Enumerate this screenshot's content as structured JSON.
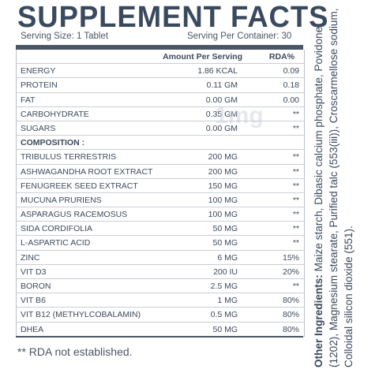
{
  "header": {
    "title": "SUPPLEMENT FACTS",
    "serving_size": "Serving Size: 1 Tablet",
    "serving_per_container": "Serving Per Container: 30"
  },
  "table": {
    "columns": [
      "",
      "Amount Per Serving",
      "RDA%"
    ],
    "rows": [
      {
        "name": "ENERGY",
        "amount": "1.86 KCAL",
        "rda": "0.09"
      },
      {
        "name": "PROTEIN",
        "amount": "0.11 GM",
        "rda": "0.18"
      },
      {
        "name": "FAT",
        "amount": "0.00 GM",
        "rda": "0.00"
      },
      {
        "name": "CARBOHYDRATE",
        "amount": "0.35 GM",
        "rda": "**"
      },
      {
        "name": "SUGARS",
        "amount": "0.00 GM",
        "rda": "**"
      },
      {
        "name": "COMPOSITION :",
        "amount": "",
        "rda": "",
        "section": true
      },
      {
        "name": "TRIBULUS TERRESTRIS",
        "amount": "200 MG",
        "rda": "**"
      },
      {
        "name": "ASHWAGANDHA ROOT EXTRACT",
        "amount": "200 MG",
        "rda": "**"
      },
      {
        "name": "FENUGREEK SEED EXTRACT",
        "amount": "150 MG",
        "rda": "**"
      },
      {
        "name": "MUCUNA PRURIENS",
        "amount": "100 MG",
        "rda": "**"
      },
      {
        "name": "ASPARAGUS RACEMOSUS",
        "amount": "100 MG",
        "rda": "**"
      },
      {
        "name": "SIDA CORDIFOLIA",
        "amount": "50 MG",
        "rda": "**"
      },
      {
        "name": "L-ASPARTIC ACID",
        "amount": "50 MG",
        "rda": "**"
      },
      {
        "name": "ZINC",
        "amount": "6 MG",
        "rda": "15%"
      },
      {
        "name": "VIT D3",
        "amount": "200 IU",
        "rda": "20%"
      },
      {
        "name": "BORON",
        "amount": "2.5 MG",
        "rda": "**"
      },
      {
        "name": "VIT B6",
        "amount": "1 MG",
        "rda": "80%"
      },
      {
        "name": "VIT B12 (METHYLCOBALAMIN)",
        "amount": "0.5 MG",
        "rda": "80%"
      },
      {
        "name": "DHEA",
        "amount": "50 MG",
        "rda": "80%"
      }
    ]
  },
  "footnote": "** RDA not established.",
  "watermark": "1mg",
  "ingredients": {
    "label": "Other Ingredients:",
    "text": "Maize starch, Dibasic calcium phosphate, Povidone (1202), Magnesium stearate, Purified talc (553(iii)), Croscarmellose sodium, Colloidal silicon dioxide (551)."
  },
  "colors": {
    "text": "#3d4a5c",
    "bar": "#4a5566",
    "rule": "#c9ced5"
  }
}
